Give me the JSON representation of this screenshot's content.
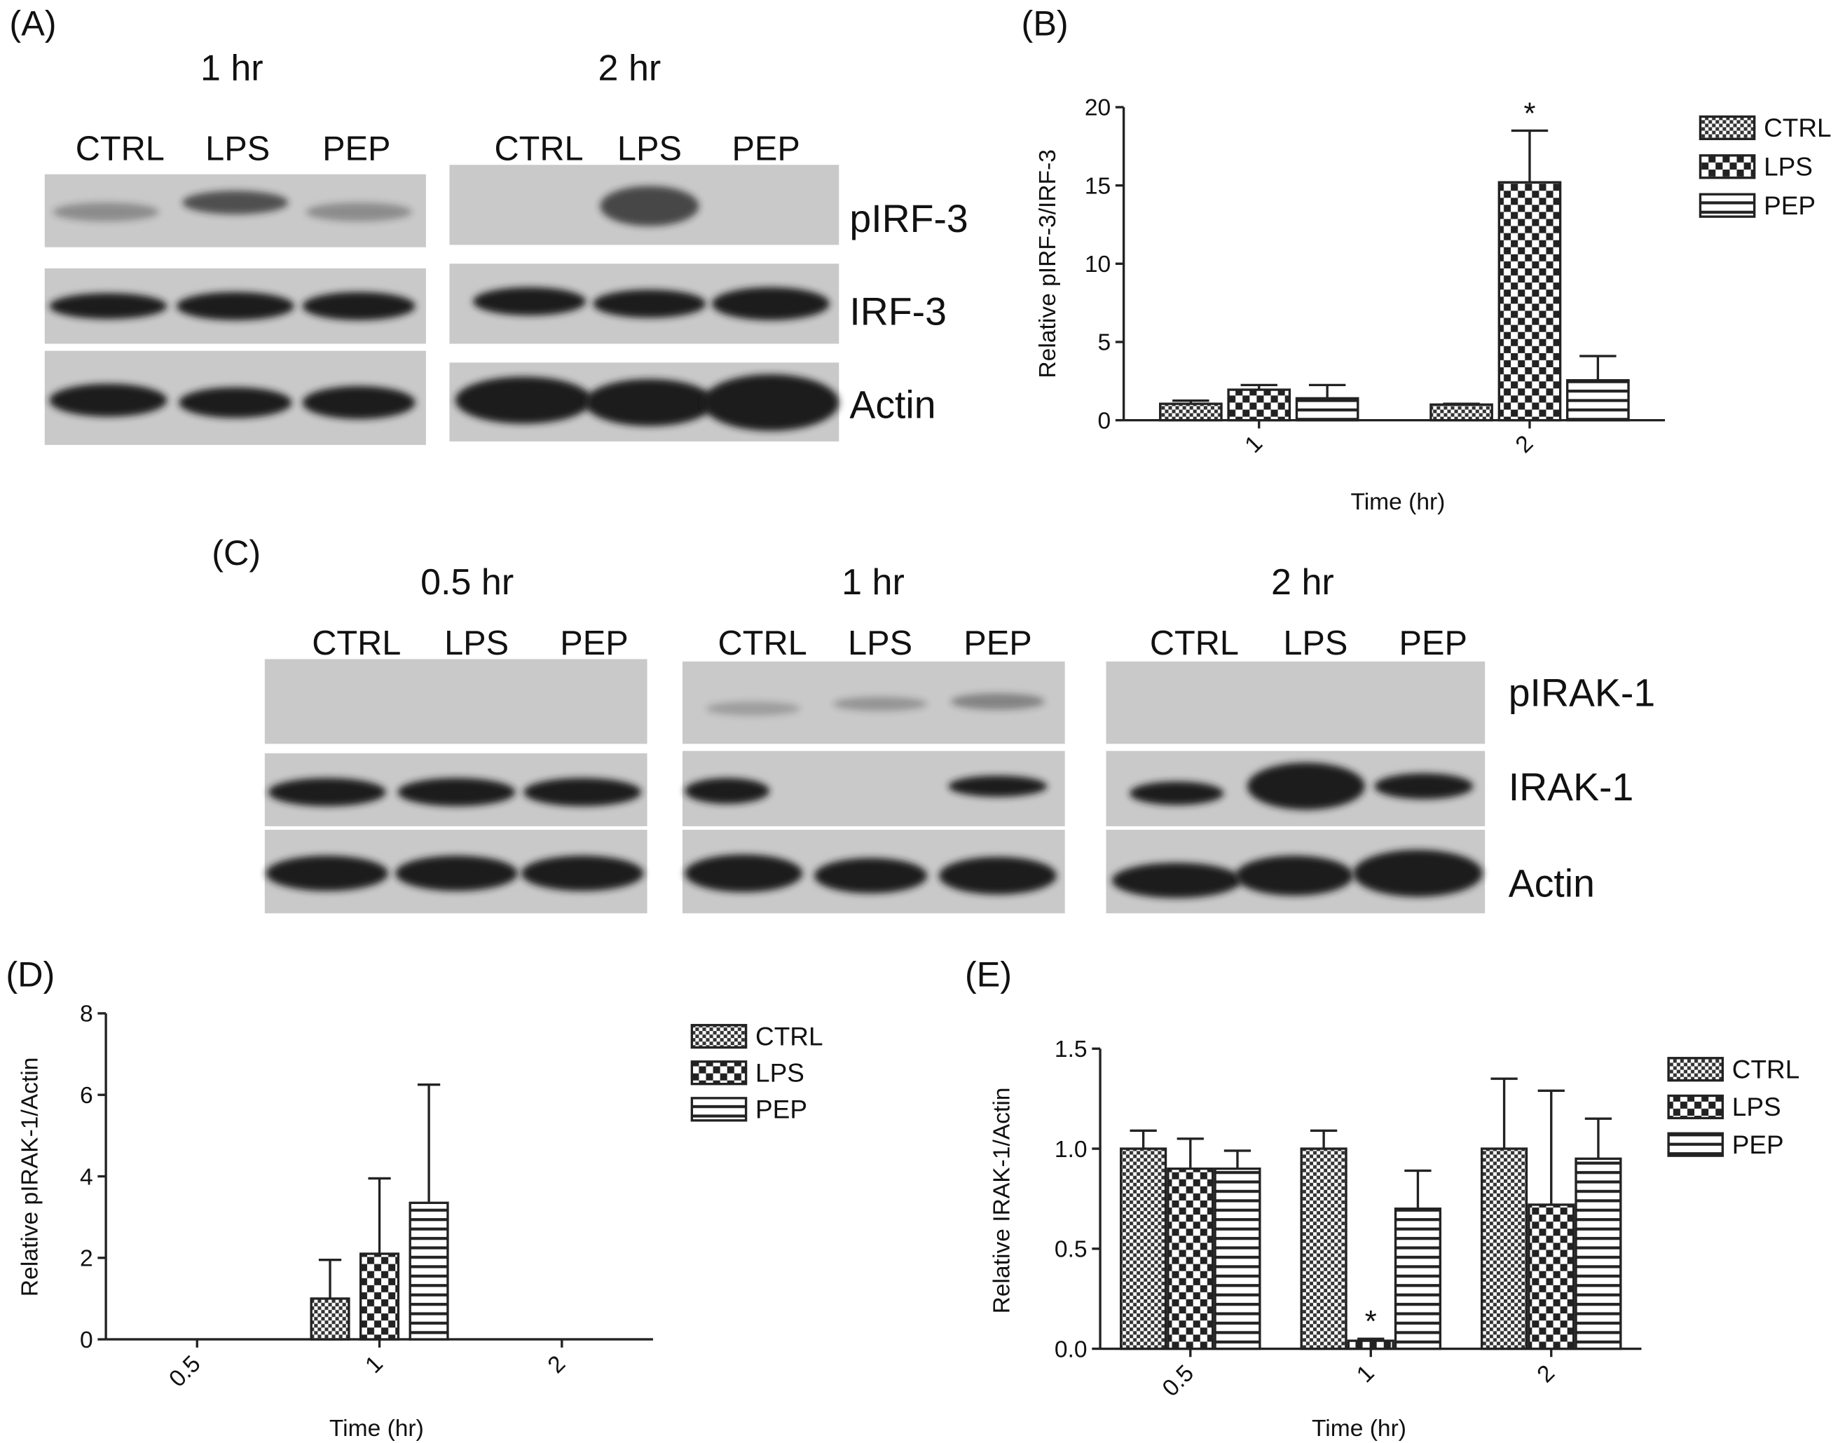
{
  "panels": {
    "A": {
      "label": "(A)",
      "times": [
        "1 hr",
        "2 hr"
      ],
      "lanes": [
        "CTRL",
        "LPS",
        "PEP"
      ],
      "proteins": [
        "pIRF-3",
        "IRF-3",
        "Actin"
      ]
    },
    "B": {
      "label": "(B)"
    },
    "C": {
      "label": "(C)",
      "times": [
        "0.5 hr",
        "1 hr",
        "2 hr"
      ],
      "lanes": [
        "CTRL",
        "LPS",
        "PEP"
      ],
      "proteins": [
        "pIRAK-1",
        "IRAK-1",
        "Actin"
      ]
    },
    "D": {
      "label": "(D)"
    },
    "E": {
      "label": "(E)"
    }
  },
  "chart_data": [
    {
      "type": "bar",
      "y_label": "Relative pIRF-3/IRF-3",
      "x_label": "Time (hr)",
      "categories": [
        "1",
        "2"
      ],
      "series": [
        {
          "name": "CTRL",
          "pattern": "fine-checker",
          "values": [
            1.05,
            1.0
          ],
          "errors": [
            0.2,
            0.05
          ]
        },
        {
          "name": "LPS",
          "pattern": "checker",
          "values": [
            1.95,
            15.2
          ],
          "errors": [
            0.3,
            3.3
          ]
        },
        {
          "name": "PEP",
          "pattern": "stripes",
          "values": [
            1.4,
            2.55
          ],
          "errors": [
            0.85,
            1.55
          ]
        }
      ],
      "ylim": [
        0,
        20
      ],
      "yticks": [
        0,
        5,
        10,
        15,
        20
      ],
      "legend": "top-right",
      "annotations": [
        {
          "text": "*",
          "category": "2",
          "series": "LPS"
        }
      ]
    },
    {
      "type": "bar",
      "y_label": "Relative pIRAK-1/Actin",
      "x_label": "Time (hr)",
      "categories": [
        "0.5",
        "1",
        "2"
      ],
      "series": [
        {
          "name": "CTRL",
          "pattern": "fine-checker",
          "values": [
            0,
            1.0,
            0
          ],
          "errors": [
            null,
            0.95,
            null
          ]
        },
        {
          "name": "LPS",
          "pattern": "checker",
          "values": [
            0,
            2.1,
            0
          ],
          "errors": [
            null,
            1.85,
            null
          ]
        },
        {
          "name": "PEP",
          "pattern": "stripes",
          "values": [
            0,
            3.35,
            0
          ],
          "errors": [
            null,
            2.9,
            null
          ]
        }
      ],
      "ylim": [
        0,
        8
      ],
      "yticks": [
        0,
        2,
        4,
        6,
        8
      ],
      "legend": "top-right"
    },
    {
      "type": "bar",
      "y_label": "Relative IRAK-1/Actin",
      "x_label": "Time (hr)",
      "categories": [
        "0.5",
        "1",
        "2"
      ],
      "series": [
        {
          "name": "CTRL",
          "pattern": "fine-checker",
          "values": [
            1.0,
            1.0,
            1.0
          ],
          "errors": [
            0.09,
            0.09,
            0.35
          ]
        },
        {
          "name": "LPS",
          "pattern": "checker",
          "values": [
            0.9,
            0.04,
            0.72
          ],
          "errors": [
            0.15,
            0.01,
            0.57
          ]
        },
        {
          "name": "PEP",
          "pattern": "stripes",
          "values": [
            0.9,
            0.7,
            0.95
          ],
          "errors": [
            0.09,
            0.19,
            0.2
          ]
        }
      ],
      "ylim": [
        0,
        1.5
      ],
      "yticks": [
        {
          "value": 0,
          "label": "0.0"
        },
        0.5,
        {
          "value": 1,
          "label": "1.0"
        },
        1.5
      ],
      "legend": "top-right",
      "annotations": [
        {
          "text": "*",
          "category": "1",
          "series": "LPS"
        }
      ]
    }
  ]
}
